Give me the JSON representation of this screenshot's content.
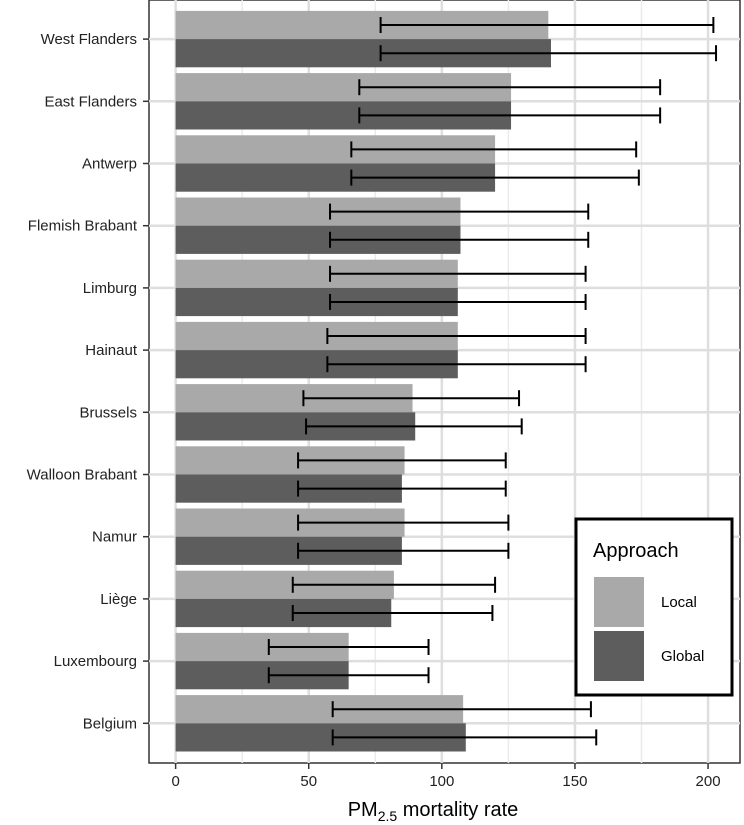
{
  "chart_data": {
    "type": "bar",
    "orientation": "horizontal",
    "title": "",
    "xlabel_prefix": "PM",
    "xlabel_subscript": "2.5",
    "xlabel_suffix": " mortality rate",
    "ylabel": "",
    "xlim": [
      -10,
      212
    ],
    "xticks": [
      0,
      50,
      100,
      150,
      200
    ],
    "grid": true,
    "legend_position": "bottom-right",
    "legend_title": "Approach",
    "categories": [
      "West Flanders",
      "East Flanders",
      "Antwerp",
      "Flemish Brabant",
      "Limburg",
      "Hainaut",
      "Brussels",
      "Walloon Brabant",
      "Namur",
      "Liège",
      "Luxembourg",
      "Belgium"
    ],
    "series": [
      {
        "name": "Local",
        "color": "#a9a9a9",
        "values": [
          140,
          126,
          120,
          107,
          106,
          106,
          89,
          86,
          86,
          82,
          65,
          108
        ],
        "lower": [
          77,
          69,
          66,
          58,
          58,
          57,
          48,
          46,
          46,
          44,
          35,
          59
        ],
        "upper": [
          202,
          182,
          173,
          155,
          154,
          154,
          129,
          124,
          125,
          120,
          95,
          156
        ]
      },
      {
        "name": "Global",
        "color": "#5d5d5d",
        "values": [
          141,
          126,
          120,
          107,
          106,
          106,
          90,
          85,
          85,
          81,
          65,
          109
        ],
        "lower": [
          77,
          69,
          66,
          58,
          58,
          57,
          49,
          46,
          46,
          44,
          35,
          59
        ],
        "upper": [
          203,
          182,
          174,
          155,
          154,
          154,
          130,
          124,
          125,
          119,
          95,
          158
        ]
      }
    ]
  }
}
